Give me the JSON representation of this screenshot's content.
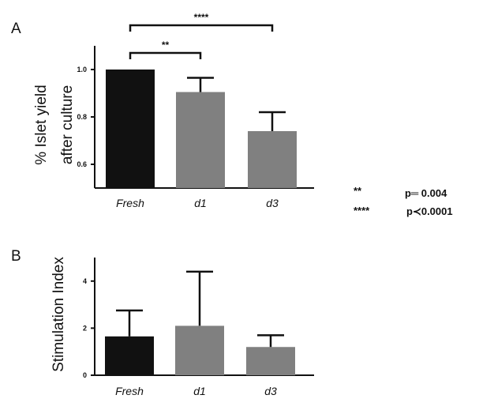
{
  "chart_data": [
    {
      "panel": "A",
      "type": "bar",
      "categories": [
        "Fresh",
        "d1",
        "d3"
      ],
      "values": [
        1.0,
        0.905,
        0.74
      ],
      "error_upper": [
        0.0,
        0.06,
        0.08
      ],
      "colors": [
        "#111111",
        "#808080",
        "#808080"
      ],
      "ylabel_lines": [
        "%  Islet yield",
        "after  culture"
      ],
      "ylim": [
        0.5,
        1.1
      ],
      "yticks": [
        0.6,
        0.8,
        1.0
      ],
      "ytick_labels": [
        "0.6",
        "0.8",
        "1.0"
      ],
      "significance": [
        {
          "from": "Fresh",
          "to": "d1",
          "label": "**"
        },
        {
          "from": "Fresh",
          "to": "d3",
          "label": "****"
        }
      ],
      "legend": [
        {
          "stars": "**",
          "text": "p═ 0.004"
        },
        {
          "stars": "****",
          "text": "p≺0.0001"
        }
      ]
    },
    {
      "panel": "B",
      "type": "bar",
      "categories": [
        "Fresh",
        "d1",
        "d3"
      ],
      "values": [
        1.65,
        2.1,
        1.2
      ],
      "error_upper": [
        1.1,
        2.3,
        0.5
      ],
      "colors": [
        "#111111",
        "#808080",
        "#808080"
      ],
      "ylabel_lines": [
        "Stimulation  Index"
      ],
      "ylim": [
        0,
        5
      ],
      "yticks": [
        0,
        2,
        4
      ],
      "ytick_labels": [
        "0",
        "2",
        "4"
      ]
    }
  ]
}
